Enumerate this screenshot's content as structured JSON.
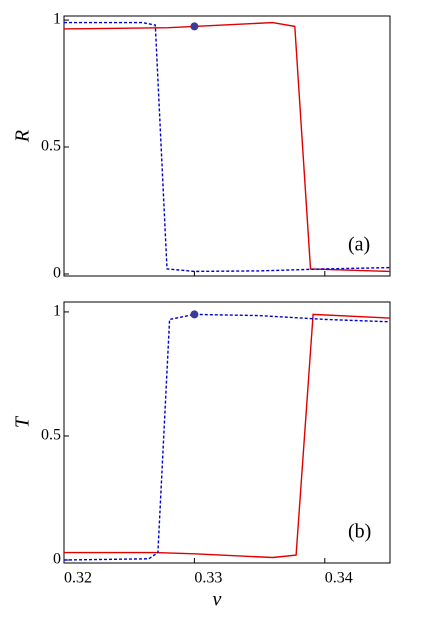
{
  "chart_data": [
    {
      "type": "line",
      "panel_label": "(a)",
      "y_label": "R",
      "xlim": [
        0.32,
        0.345
      ],
      "xticks": [
        0.32,
        0.33,
        0.34
      ],
      "show_x_tick_labels": false,
      "ylim": [
        -0.008,
        1.016
      ],
      "yticks": [
        0,
        0.5,
        1
      ],
      "series": [
        {
          "color": "#e00000",
          "dash": false,
          "x": [
            0.32,
            0.328,
            0.33,
            0.336,
            0.3377,
            0.3389,
            0.345
          ],
          "values": [
            0.965,
            0.97,
            0.975,
            0.99,
            0.975,
            0.02,
            0.01
          ]
        },
        {
          "color": "#0000cc",
          "dash": true,
          "x": [
            0.32,
            0.326,
            0.327,
            0.3279,
            0.33,
            0.335,
            0.34,
            0.345
          ],
          "values": [
            0.99,
            0.99,
            0.98,
            0.02,
            0.01,
            0.012,
            0.02,
            0.025
          ]
        }
      ],
      "points": [
        {
          "color": "#3a3a9a",
          "x": 0.33,
          "y": 0.975
        }
      ]
    },
    {
      "type": "line",
      "panel_label": "(b)",
      "y_label": "T",
      "x_label": "v",
      "xlim": [
        0.32,
        0.345
      ],
      "xticks": [
        0.32,
        0.33,
        0.34
      ],
      "show_x_tick_labels": true,
      "ylim": [
        -0.012,
        1.04
      ],
      "yticks": [
        0,
        0.5,
        1
      ],
      "series": [
        {
          "color": "#e00000",
          "dash": false,
          "x": [
            0.32,
            0.327,
            0.33,
            0.336,
            0.3378,
            0.3391,
            0.345
          ],
          "values": [
            0.03,
            0.03,
            0.025,
            0.01,
            0.02,
            0.99,
            0.975
          ]
        },
        {
          "color": "#0000cc",
          "dash": true,
          "x": [
            0.32,
            0.3265,
            0.3272,
            0.3281,
            0.33,
            0.335,
            0.34,
            0.345
          ],
          "values": [
            0.0,
            0.005,
            0.03,
            0.97,
            0.99,
            0.985,
            0.97,
            0.96
          ]
        }
      ],
      "points": [
        {
          "color": "#3a3a9a",
          "x": 0.33,
          "y": 0.99
        }
      ]
    }
  ]
}
